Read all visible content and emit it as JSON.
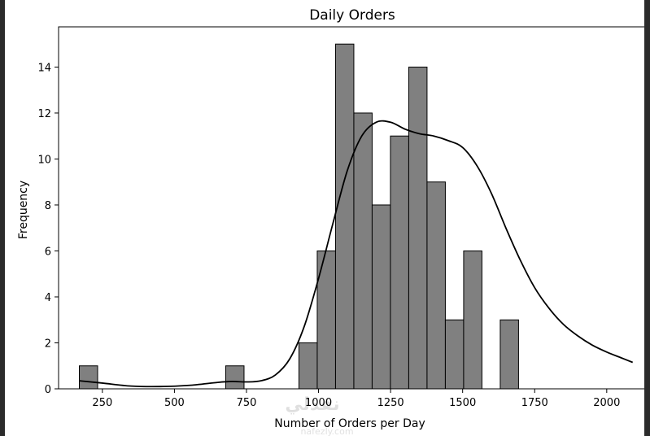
{
  "chart_data": {
    "type": "bar",
    "title": "Daily Orders",
    "xlabel": "Number of Orders per Day",
    "ylabel": "Frequency",
    "xlim": [
      98,
      2136
    ],
    "ylim": [
      0,
      15.75
    ],
    "bin_width": 63.5,
    "xticks": [
      250,
      500,
      750,
      1000,
      1250,
      1500,
      1750,
      2000
    ],
    "yticks": [
      0,
      2,
      4,
      6,
      8,
      10,
      12,
      14
    ],
    "bins": [
      {
        "start": 170,
        "count": 1
      },
      {
        "start": 233.5,
        "count": 0
      },
      {
        "start": 297,
        "count": 0
      },
      {
        "start": 360.5,
        "count": 0
      },
      {
        "start": 424,
        "count": 0
      },
      {
        "start": 487.5,
        "count": 0
      },
      {
        "start": 551,
        "count": 0
      },
      {
        "start": 614.5,
        "count": 0
      },
      {
        "start": 678,
        "count": 1
      },
      {
        "start": 741.5,
        "count": 0
      },
      {
        "start": 805,
        "count": 0
      },
      {
        "start": 868.5,
        "count": 0
      },
      {
        "start": 932,
        "count": 2
      },
      {
        "start": 995.5,
        "count": 6
      },
      {
        "start": 1059,
        "count": 15
      },
      {
        "start": 1122.5,
        "count": 12
      },
      {
        "start": 1186,
        "count": 8
      },
      {
        "start": 1249.5,
        "count": 11
      },
      {
        "start": 1313,
        "count": 14
      },
      {
        "start": 1376.5,
        "count": 9
      },
      {
        "start": 1440,
        "count": 3
      },
      {
        "start": 1503.5,
        "count": 6
      },
      {
        "start": 1567,
        "count": 0
      },
      {
        "start": 1630.5,
        "count": 3
      }
    ],
    "kde": {
      "x": [
        170,
        250,
        350,
        450,
        550,
        650,
        700,
        750,
        800,
        850,
        900,
        950,
        1000,
        1050,
        1100,
        1150,
        1200,
        1250,
        1300,
        1350,
        1400,
        1450,
        1500,
        1550,
        1600,
        1650,
        1700,
        1750,
        1800,
        1850,
        1900,
        1950,
        2000,
        2050,
        2090
      ],
      "y": [
        0.35,
        0.25,
        0.12,
        0.1,
        0.15,
        0.28,
        0.32,
        0.3,
        0.35,
        0.6,
        1.3,
        2.7,
        4.8,
        7.2,
        9.5,
        11.0,
        11.6,
        11.6,
        11.3,
        11.1,
        11.0,
        10.8,
        10.5,
        9.7,
        8.5,
        7.0,
        5.6,
        4.4,
        3.5,
        2.8,
        2.3,
        1.9,
        1.6,
        1.35,
        1.15
      ]
    },
    "bar_color": "#808080",
    "edge_color": "#000000",
    "line_color": "#000000",
    "grid": false
  },
  "watermark": {
    "text": "نفذلي",
    "subtext": "nafezly.com"
  }
}
